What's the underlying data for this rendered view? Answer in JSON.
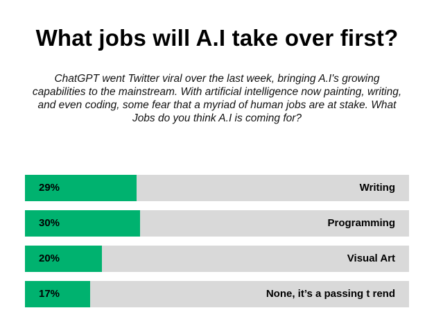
{
  "title": "What jobs will A.I take over first?",
  "subtitle": "ChatGPT went Twitter viral over the last week, bringing A.I's growing capabilities to the mainstream. With artificial intelligence now painting, writing, and even coding, some fear that a myriad of human jobs are at stake. What Jobs do you think A.I is coming for?",
  "colors": {
    "fill": "#00b26f",
    "track": "#d9d9d9"
  },
  "chart_data": {
    "type": "bar",
    "orientation": "horizontal",
    "title": "What jobs will A.I take over first?",
    "categories": [
      "Writing",
      "Programming",
      "Visual Art",
      "None, it’s a passing t rend"
    ],
    "values": [
      29,
      30,
      20,
      17
    ],
    "value_labels": [
      "29%",
      "30%",
      "20%",
      "17%"
    ],
    "unit": "%",
    "xlim": [
      0,
      100
    ],
    "grid": false,
    "legend": "none"
  }
}
